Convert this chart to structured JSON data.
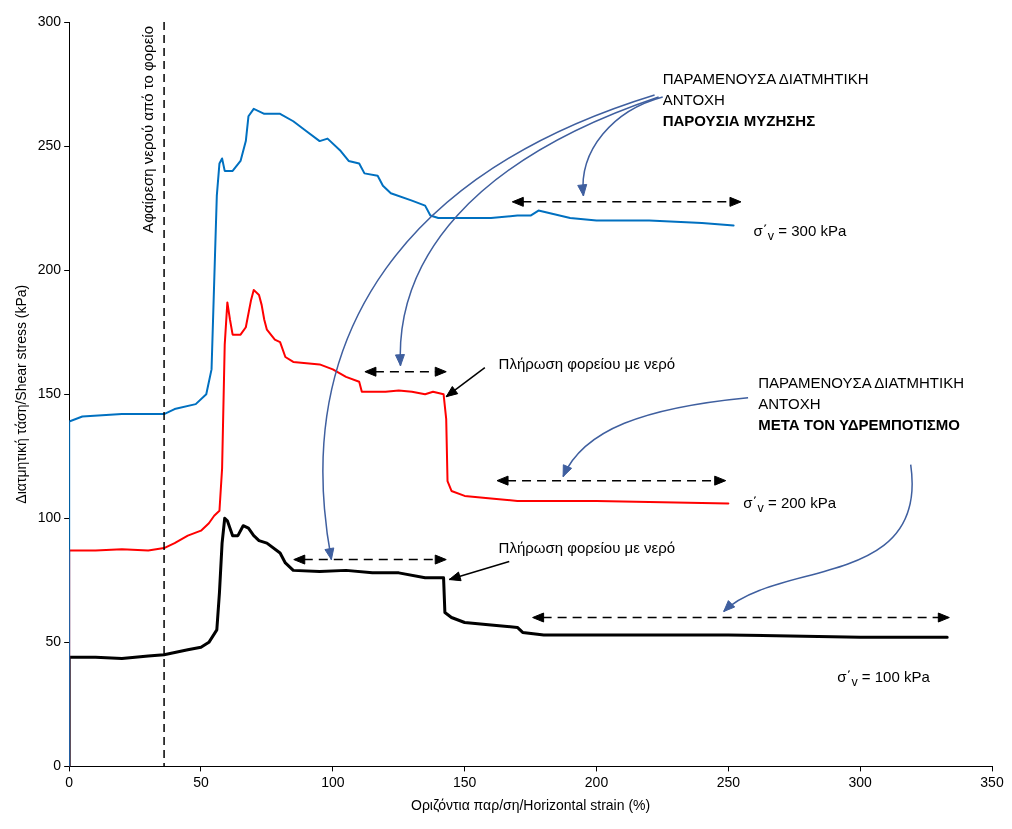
{
  "chart_data": {
    "type": "line",
    "xlabel": "Οριζόντια παρ/ση/Horizontal strain (%)",
    "ylabel": "Διατμητική τάση/Shear stress (kPa)",
    "xlim": [
      0,
      350
    ],
    "xticks": [
      0,
      50,
      100,
      150,
      200,
      250,
      300,
      350
    ],
    "ylim": [
      0,
      300
    ],
    "yticks": [
      0,
      50,
      100,
      150,
      200,
      250,
      300
    ],
    "grid": false,
    "legend": false,
    "marker": "none",
    "line_style": "solid",
    "series": [
      {
        "name": "σ΄$_{v}$ = 300 kPa",
        "color": "#0070c0",
        "x": [
          0,
          0,
          5,
          20,
          36,
          40,
          48,
          52,
          54,
          56,
          57,
          58,
          59,
          62,
          65,
          67,
          68,
          70,
          74,
          80,
          85,
          90,
          95,
          98,
          103,
          106,
          110,
          112,
          117,
          119,
          122,
          130,
          135,
          137,
          140,
          150,
          160,
          170,
          175,
          178,
          182,
          190,
          200,
          220,
          240,
          252
        ],
        "values": [
          0,
          139,
          141,
          142,
          142,
          144,
          146,
          150,
          160,
          230,
          243,
          245,
          240,
          240,
          244,
          252,
          262,
          265,
          263,
          263,
          260,
          256,
          252,
          253,
          248,
          244,
          243,
          239,
          238,
          234,
          231,
          228,
          226,
          222,
          221,
          221,
          221,
          222,
          222,
          224,
          223,
          221,
          220,
          220,
          219,
          218
        ]
      },
      {
        "name": "σ΄$_{v}$ = 200 kPa",
        "color": "#ff0000",
        "x": [
          0,
          0,
          10,
          20,
          30,
          36,
          40,
          45,
          50,
          53,
          55,
          57,
          58,
          59,
          60,
          61,
          62,
          65,
          67,
          69,
          70,
          72,
          73,
          74,
          75,
          78,
          80,
          82,
          85,
          95,
          100,
          105,
          110,
          111,
          120,
          125,
          130,
          135,
          138,
          142,
          143,
          143.5,
          145,
          150,
          160,
          170,
          200,
          250
        ],
        "values": [
          0,
          87,
          87,
          87.5,
          87,
          88,
          90,
          93,
          95,
          98,
          101,
          103,
          120,
          170,
          187,
          180,
          174,
          174,
          177,
          188,
          192,
          190,
          186,
          180,
          176,
          172,
          171,
          165,
          163,
          162,
          160,
          157,
          155,
          151,
          151,
          151.5,
          151,
          150,
          151,
          150,
          140,
          115,
          111,
          109,
          108,
          107,
          107,
          106
        ]
      },
      {
        "name": "σ΄$_{v}$ = 100 kPa",
        "color": "#000000",
        "x": [
          0,
          0,
          10,
          20,
          30,
          36,
          45,
          50,
          53,
          56,
          57,
          58,
          59,
          60,
          62,
          64,
          66,
          68,
          70,
          72,
          75,
          80,
          82,
          85,
          95,
          105,
          115,
          125,
          135,
          142,
          142.5,
          145,
          150,
          160,
          170,
          172,
          180,
          200,
          250,
          300,
          333
        ],
        "values": [
          0,
          44,
          44,
          43.5,
          44.5,
          45,
          47,
          48,
          50,
          55,
          70,
          90,
          100,
          99,
          93,
          93,
          97,
          96,
          93,
          91,
          90,
          86,
          82,
          79,
          78.5,
          79,
          78,
          78,
          76,
          76,
          62,
          60,
          58,
          57,
          56,
          54,
          53,
          53,
          53,
          52,
          52
        ]
      }
    ],
    "ref_lines": [
      {
        "axis": "x",
        "value": 36,
        "label": "Αφαίρεση νερού από το φορείο",
        "color": "#000000",
        "line_style": "dashed"
      }
    ],
    "annotations": [
      {
        "text": "Πλήρωση φορείου με νερό",
        "x": 142,
        "y": 150
      },
      {
        "text": "Πλήρωση φορείου με νερό",
        "x": 142,
        "y": 76
      },
      "ΠΑΡΑΜΕΝΟΥΣΑ ΔΙΑΤΜΗΤΙΚΗ ΑΝΤΟΧΗ",
      "ΠΑΡΟΥΣΙΑ ΜΥΖΗΣΗΣ",
      "ΠΑΡΑΜΕΝΟΥΣΑ ΔΙΑΤΜΗΤΙΚΗ ΑΝΤΟΧΗ",
      "ΜΕΤΑ ΤΟΝ ΥΔΡΕΜΠΟΤΙΣΜΟ"
    ]
  }
}
